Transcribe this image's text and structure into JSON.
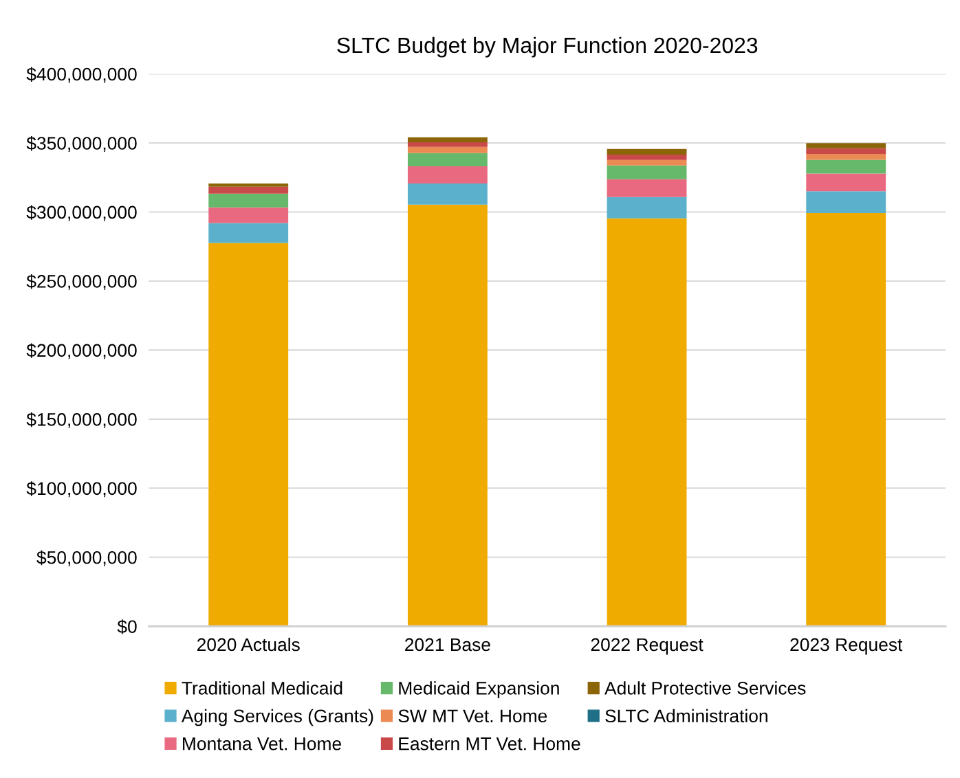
{
  "chart_data": {
    "type": "bar",
    "title": "SLTC Budget by Major Function 2020-2023",
    "categories": [
      "2020 Actuals",
      "2021 Base",
      "2022 Request",
      "2023 Request"
    ],
    "stacked": true,
    "grid": "y",
    "legend": "bottom",
    "ylim": [
      0,
      400000000
    ],
    "yticks": [
      {
        "value": 0,
        "label": "$0"
      },
      {
        "value": 50000000,
        "label": "$50,000,000"
      },
      {
        "value": 100000000,
        "label": "$100,000,000"
      },
      {
        "value": 150000000,
        "label": "$150,000,000"
      },
      {
        "value": 200000000,
        "label": "$200,000,000"
      },
      {
        "value": 250000000,
        "label": "$250,000,000"
      },
      {
        "value": 300000000,
        "label": "$300,000,000"
      },
      {
        "value": 350000000,
        "label": "$350,000,000"
      },
      {
        "value": 400000000,
        "label": "$400,000,000"
      }
    ],
    "series": [
      {
        "name": "Traditional Medicaid",
        "color": "#f0ab00",
        "values": [
          277600000,
          305300000,
          295400000,
          299200000
        ]
      },
      {
        "name": "Aging Services (Grants)",
        "color": "#5bb1cb",
        "values": [
          14400000,
          15400000,
          15400000,
          15800000
        ]
      },
      {
        "name": "Montana Vet. Home",
        "color": "#e96a80",
        "values": [
          11300000,
          12400000,
          12900000,
          12800000
        ]
      },
      {
        "name": "Medicaid Expansion",
        "color": "#66b96a",
        "values": [
          10000000,
          9500000,
          10000000,
          10000000
        ]
      },
      {
        "name": "SW MT Vet. Home",
        "color": "#ec8a54",
        "values": [
          0,
          4600000,
          4000000,
          4300000
        ]
      },
      {
        "name": "Eastern MT Vet. Home",
        "color": "#c94848",
        "values": [
          5000000,
          3300000,
          3800000,
          4000000
        ]
      },
      {
        "name": "Adult Protective Services",
        "color": "#8b6508",
        "values": [
          2300000,
          3600000,
          4200000,
          3800000
        ]
      },
      {
        "name": "SLTC Administration",
        "color": "#1f6f86",
        "values": [
          0,
          0,
          0,
          0
        ]
      }
    ]
  }
}
